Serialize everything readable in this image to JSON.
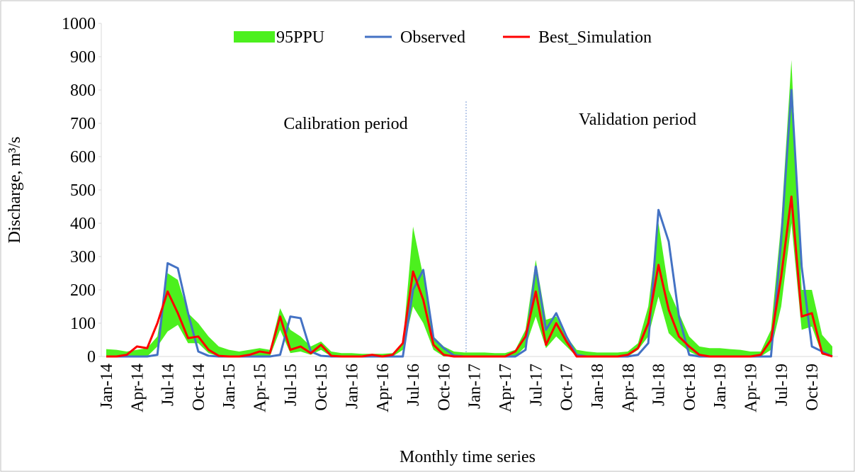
{
  "chart_data": {
    "type": "line",
    "xlabel": "Monthly time series",
    "ylabel": "Discharge, m³/s",
    "annotations": [
      "Calibration period",
      "Validation period"
    ],
    "categories": [
      "Jan-14",
      null,
      null,
      "Apr-14",
      null,
      null,
      "Jul-14",
      null,
      null,
      "Oct-14",
      null,
      null,
      "Jan-15",
      null,
      null,
      "Apr-15",
      null,
      null,
      "Jul-15",
      null,
      null,
      "Oct-15",
      null,
      null,
      "Jan-16",
      null,
      null,
      "Apr-16",
      null,
      null,
      "Jul-16",
      null,
      null,
      "Oct-16",
      null,
      null,
      "Jan-17",
      null,
      null,
      "Apr-17",
      null,
      null,
      "Jul-17",
      null,
      null,
      "Oct-17",
      null,
      null,
      "Jan-18",
      null,
      null,
      "Apr-18",
      null,
      null,
      "Jul-18",
      null,
      null,
      "Oct-18",
      null,
      null,
      "Jan-19",
      null,
      null,
      "Apr-19",
      null,
      null,
      "Jul-19",
      null,
      null,
      "Oct-19",
      null,
      null
    ],
    "ylim": [
      0,
      1000
    ],
    "yticks": [
      0,
      100,
      200,
      300,
      400,
      500,
      600,
      700,
      800,
      900,
      1000
    ],
    "legend": "top",
    "series": [
      {
        "name": "95PPU",
        "color": "#4cf01e",
        "upper": [
          22,
          20,
          15,
          20,
          25,
          60,
          250,
          230,
          130,
          100,
          60,
          30,
          20,
          15,
          20,
          25,
          20,
          145,
          80,
          60,
          30,
          45,
          15,
          10,
          10,
          8,
          8,
          8,
          10,
          40,
          390,
          240,
          60,
          30,
          15,
          12,
          12,
          12,
          10,
          10,
          20,
          80,
          290,
          110,
          120,
          60,
          20,
          15,
          12,
          12,
          12,
          15,
          40,
          150,
          400,
          200,
          130,
          60,
          30,
          25,
          25,
          22,
          20,
          15,
          15,
          80,
          400,
          890,
          200,
          200,
          65,
          30
        ],
        "lower": [
          0,
          0,
          0,
          0,
          0,
          30,
          75,
          95,
          40,
          40,
          10,
          0,
          0,
          0,
          0,
          0,
          0,
          80,
          10,
          15,
          5,
          20,
          0,
          0,
          0,
          0,
          0,
          0,
          0,
          20,
          150,
          100,
          20,
          0,
          0,
          0,
          0,
          0,
          0,
          0,
          0,
          30,
          120,
          25,
          60,
          30,
          0,
          0,
          0,
          0,
          0,
          0,
          20,
          60,
          180,
          70,
          40,
          15,
          0,
          0,
          0,
          0,
          0,
          0,
          0,
          20,
          150,
          400,
          80,
          90,
          5,
          0
        ]
      },
      {
        "name": "Observed",
        "color": "#4472c4",
        "values": [
          0,
          0,
          0,
          0,
          0,
          5,
          280,
          265,
          130,
          15,
          2,
          0,
          0,
          0,
          0,
          0,
          0,
          5,
          120,
          115,
          15,
          2,
          0,
          0,
          0,
          0,
          0,
          0,
          0,
          0,
          200,
          260,
          55,
          25,
          3,
          0,
          0,
          0,
          0,
          0,
          0,
          20,
          270,
          80,
          130,
          60,
          5,
          0,
          0,
          0,
          0,
          0,
          5,
          40,
          440,
          345,
          120,
          5,
          0,
          0,
          0,
          0,
          0,
          0,
          0,
          0,
          350,
          800,
          270,
          30,
          15,
          0
        ]
      },
      {
        "name": "Best_Simulation",
        "color": "#ff0000",
        "values": [
          0,
          0,
          5,
          30,
          25,
          100,
          195,
          130,
          55,
          60,
          20,
          2,
          0,
          0,
          5,
          15,
          10,
          120,
          20,
          30,
          10,
          35,
          2,
          0,
          0,
          0,
          5,
          0,
          5,
          40,
          255,
          170,
          35,
          5,
          0,
          0,
          0,
          0,
          0,
          0,
          15,
          60,
          195,
          35,
          100,
          45,
          0,
          0,
          0,
          0,
          0,
          5,
          25,
          100,
          275,
          140,
          60,
          30,
          5,
          0,
          0,
          0,
          0,
          0,
          5,
          50,
          240,
          480,
          120,
          130,
          10,
          0
        ]
      }
    ]
  }
}
